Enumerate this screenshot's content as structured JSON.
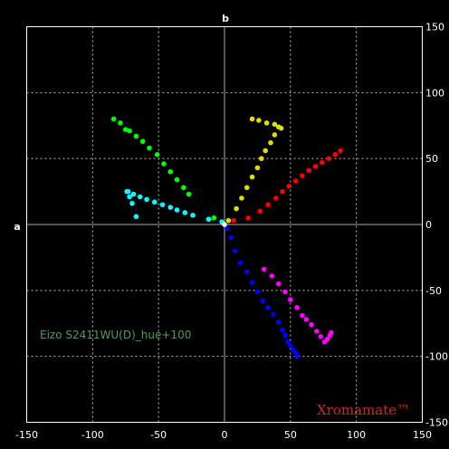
{
  "chart_data": {
    "type": "scatter",
    "title": "",
    "xlabel": "a",
    "ylabel": "b",
    "xlim": [
      -150,
      150
    ],
    "ylim": [
      -150,
      150
    ],
    "x_ticks": [
      -150,
      -100,
      -50,
      0,
      50,
      100,
      150
    ],
    "y_ticks": [
      150,
      100,
      50,
      0,
      -50,
      -100,
      -150
    ],
    "grid": true,
    "annotations": {
      "caption": "Eizo S2411WU(D)_hue+100",
      "brand": "Xromamate™"
    },
    "series": [
      {
        "color": "#ff0000",
        "x": [
          7,
          18,
          27,
          33,
          39,
          44,
          49,
          54,
          59,
          64,
          69,
          74,
          79,
          84,
          88
        ],
        "y": [
          3,
          5,
          10,
          15,
          20,
          25,
          29,
          33,
          37,
          41,
          44,
          47,
          50,
          53,
          56
        ]
      },
      {
        "color": "#dddd00",
        "x": [
          3,
          9,
          13,
          17,
          21,
          25,
          28,
          31,
          35,
          38,
          41,
          43,
          38,
          32,
          26,
          21
        ],
        "y": [
          3,
          12,
          20,
          28,
          36,
          43,
          50,
          56,
          62,
          68,
          74,
          73,
          76,
          77,
          79,
          80
        ]
      },
      {
        "color": "#00ff00",
        "x": [
          -8,
          -12,
          -27,
          -31,
          -36,
          -41,
          -46,
          -51,
          -57,
          -62,
          -67,
          -72,
          -75,
          -79,
          -84
        ],
        "y": [
          5,
          4,
          23,
          28,
          34,
          40,
          46,
          53,
          58,
          63,
          67,
          71,
          72,
          77,
          80
        ]
      },
      {
        "color": "#00ffff",
        "x": [
          -2,
          -12,
          -24,
          -30,
          -36,
          -41,
          -47,
          -53,
          -59,
          -64,
          -69,
          -73,
          -74,
          -72,
          -70,
          -67
        ],
        "y": [
          2,
          4,
          7,
          9,
          11,
          13,
          15,
          17,
          19,
          21,
          23,
          25,
          25,
          21,
          16,
          6
        ]
      },
      {
        "color": "#0000ff",
        "x": [
          2,
          5,
          8,
          12,
          17,
          21,
          25,
          29,
          33,
          37,
          41,
          44,
          46,
          48,
          50,
          52,
          54,
          55
        ],
        "y": [
          -3,
          -10,
          -20,
          -29,
          -36,
          -44,
          -51,
          -58,
          -63,
          -68,
          -74,
          -80,
          -84,
          -89,
          -92,
          -95,
          -97,
          -100
        ]
      },
      {
        "color": "#ff00ff",
        "x": [
          30,
          36,
          41,
          46,
          50,
          55,
          59,
          62,
          66,
          70,
          73,
          76,
          78,
          80,
          81
        ],
        "y": [
          -34,
          -39,
          -45,
          -51,
          -57,
          -63,
          -69,
          -72,
          -76,
          -81,
          -85,
          -89,
          -87,
          -84,
          -82
        ]
      },
      {
        "color": "#ffffff",
        "x": [
          0
        ],
        "y": [
          0
        ]
      }
    ]
  }
}
